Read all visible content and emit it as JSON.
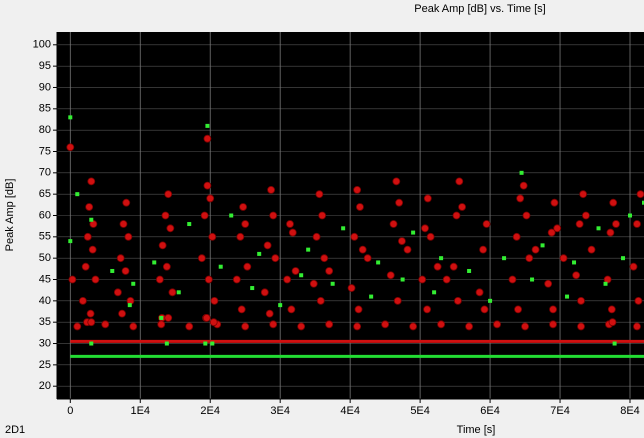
{
  "chart_data": {
    "type": "scatter",
    "title": "Peak Amp [dB] vs. Time [s]",
    "x_label": "Time [s]",
    "y_label": "Peak Amp [dB]",
    "panel_label": "2D1",
    "xlim": [
      -1900,
      82000
    ],
    "ylim": [
      17,
      103
    ],
    "xticks": [
      0,
      {
        "value": 10000,
        "label": "1E4"
      },
      {
        "value": 20000,
        "label": "2E4"
      },
      {
        "value": 30000,
        "label": "3E4"
      },
      {
        "value": 40000,
        "label": "4E4"
      },
      {
        "value": 50000,
        "label": "5E4"
      },
      {
        "value": 60000,
        "label": "6E4"
      },
      {
        "value": 70000,
        "label": "7E4"
      },
      {
        "value": 80000,
        "label": "8E4"
      }
    ],
    "yticks": [
      20,
      25,
      30,
      35,
      40,
      45,
      50,
      55,
      60,
      65,
      70,
      75,
      80,
      85,
      90,
      95,
      100
    ],
    "grid": true,
    "background": "#000000",
    "series": [
      {
        "color": "#d01010",
        "mode": "line",
        "x": [
          0,
          82000
        ],
        "y": [
          30.5,
          30.5
        ]
      },
      {
        "color": "#22dd33",
        "mode": "line",
        "x": [
          0,
          82000
        ],
        "y": [
          27,
          27
        ]
      },
      {
        "color": "#d01010",
        "mode": "markers",
        "marker": "circle",
        "x": [
          1800,
          2200,
          2500,
          2700,
          3000,
          3300,
          3600,
          2900,
          2400,
          3200,
          6800,
          7200,
          7600,
          8000,
          8300,
          7900,
          7400,
          8600,
          12800,
          13200,
          13600,
          14000,
          14300,
          13800,
          14600,
          13100,
          18800,
          19200,
          19600,
          20000,
          20300,
          19800,
          20600,
          19400,
          23800,
          24300,
          24700,
          25000,
          25300,
          24500,
          27800,
          28200,
          28700,
          29000,
          29300,
          28500,
          31000,
          31400,
          31800,
          32200,
          31600,
          34800,
          35200,
          35600,
          36000,
          36300,
          35800,
          37000,
          40200,
          40600,
          41000,
          41400,
          41800,
          41200,
          42500,
          45800,
          46200,
          46600,
          47000,
          47400,
          46800,
          48200,
          50300,
          50700,
          51100,
          51500,
          51000,
          52500,
          54800,
          55200,
          55600,
          56000,
          55400,
          53800,
          58500,
          59000,
          59500,
          59200,
          63200,
          63800,
          64300,
          64800,
          65200,
          65600,
          64000,
          66500,
          68300,
          68800,
          69200,
          69600,
          69000,
          70500,
          72300,
          72800,
          73300,
          73700,
          73000,
          74500,
          76800,
          77200,
          77600,
          78000,
          77400,
          80500,
          81000,
          81500,
          81200,
          0,
          19600,
          300,
          1000,
          5000,
          9000,
          13000,
          17000,
          21000,
          25000,
          29000,
          33000,
          37000,
          41000,
          45000,
          49000,
          53000,
          57000,
          61000,
          65000,
          69000,
          73000,
          77000,
          81000,
          3000,
          14000,
          19500,
          20500,
          77500
        ],
        "y": [
          40,
          48,
          55,
          62,
          68,
          58,
          45,
          37,
          35,
          52,
          42,
          50,
          58,
          63,
          55,
          47,
          37,
          40,
          45,
          53,
          60,
          65,
          57,
          48,
          42,
          36,
          50,
          60,
          67,
          64,
          55,
          45,
          40,
          36,
          45,
          55,
          62,
          58,
          48,
          38,
          42,
          53,
          66,
          60,
          50,
          37,
          45,
          58,
          56,
          47,
          38,
          44,
          55,
          65,
          60,
          50,
          40,
          47,
          43,
          55,
          66,
          62,
          52,
          38,
          50,
          46,
          58,
          68,
          63,
          54,
          40,
          52,
          45,
          57,
          64,
          55,
          38,
          48,
          48,
          60,
          68,
          62,
          40,
          45,
          42,
          52,
          58,
          38,
          45,
          55,
          64,
          67,
          60,
          50,
          38,
          52,
          44,
          56,
          63,
          57,
          38,
          50,
          46,
          58,
          65,
          60,
          40,
          52,
          45,
          56,
          63,
          58,
          38,
          48,
          58,
          65,
          40,
          76,
          78,
          45,
          34,
          34.5,
          34,
          34.5,
          34,
          34.5,
          34,
          34.5,
          34,
          34.5,
          34,
          34.5,
          34,
          34.5,
          34,
          34.5,
          34,
          34.5,
          34,
          34.5,
          34,
          35,
          36,
          36,
          35,
          35
        ]
      },
      {
        "color": "#33ee33",
        "mode": "markers",
        "marker": "square",
        "x": [
          0,
          0,
          1000,
          19600,
          6000,
          9000,
          12000,
          15500,
          17000,
          21500,
          23000,
          26000,
          27000,
          30000,
          33000,
          34000,
          37500,
          39000,
          43000,
          44000,
          47500,
          49000,
          52000,
          53000,
          57000,
          60000,
          62000,
          64500,
          66000,
          67500,
          71000,
          72000,
          75500,
          76500,
          79000,
          80000,
          82000,
          3000,
          8500,
          13000,
          3000,
          13800,
          19300,
          20300,
          77800
        ],
        "y": [
          83,
          54,
          65,
          81,
          47,
          44,
          49,
          42,
          58,
          48,
          60,
          43,
          51,
          39,
          46,
          52,
          44,
          57,
          41,
          49,
          45,
          56,
          42,
          50,
          47,
          40,
          50,
          70,
          45,
          53,
          41,
          49,
          57,
          44,
          50,
          60,
          63,
          59,
          39,
          36,
          30,
          30,
          30,
          30,
          30
        ]
      }
    ]
  }
}
